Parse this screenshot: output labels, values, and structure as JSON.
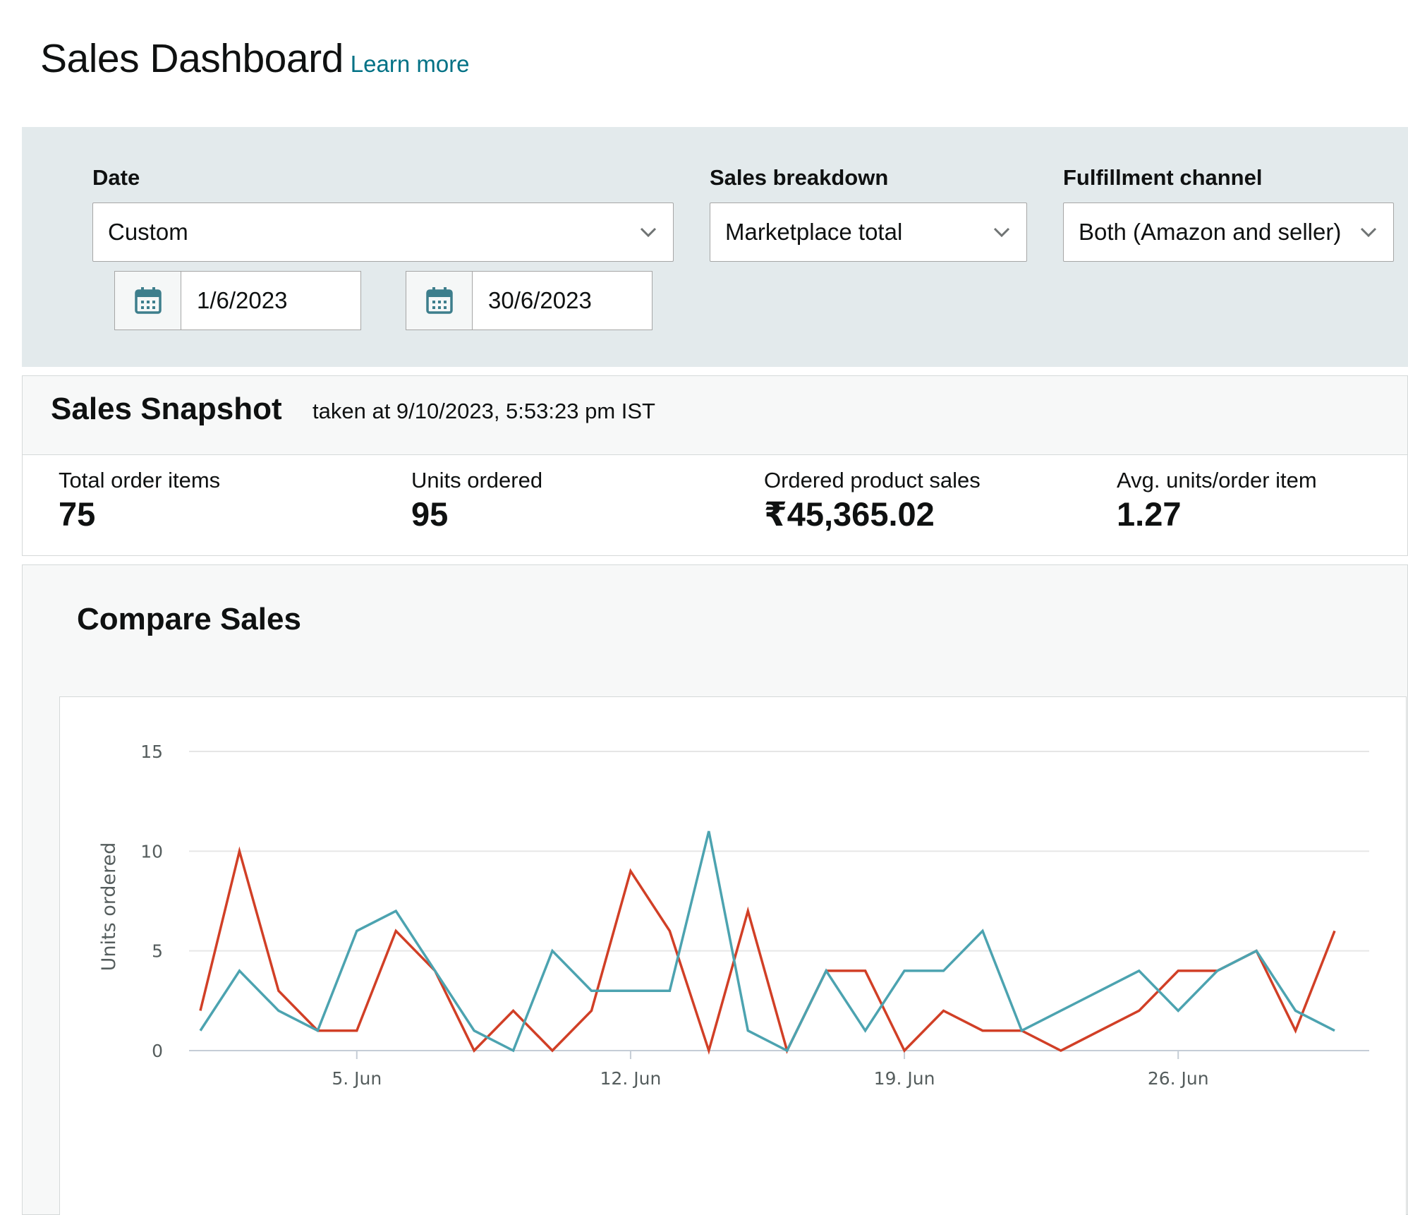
{
  "header": {
    "title": "Sales Dashboard",
    "learn_more": "Learn more"
  },
  "filters": {
    "date": {
      "label": "Date",
      "value": "Custom",
      "start": "1/6/2023",
      "end": "30/6/2023"
    },
    "sales_breakdown": {
      "label": "Sales breakdown",
      "value": "Marketplace total"
    },
    "fulfillment_channel": {
      "label": "Fulfillment channel",
      "value": "Both (Amazon and seller)"
    }
  },
  "snapshot": {
    "title": "Sales Snapshot",
    "taken_at": "taken at 9/10/2023, 5:53:23 pm IST",
    "metrics": [
      {
        "label": "Total order items",
        "value": "75"
      },
      {
        "label": "Units ordered",
        "value": "95"
      },
      {
        "label": "Ordered product sales",
        "value": "₹45,365.02"
      },
      {
        "label": "Avg. units/order item",
        "value": "1.27"
      }
    ]
  },
  "compare": {
    "title": "Compare Sales"
  },
  "colors": {
    "series_red": "#d13f26",
    "series_teal": "#4ca3b0",
    "link": "#007185"
  },
  "chart_data": {
    "type": "line",
    "ylabel": "Units ordered",
    "ylim": [
      0,
      15
    ],
    "yticks": [
      0,
      5,
      10,
      15
    ],
    "x": [
      1,
      2,
      3,
      4,
      5,
      6,
      7,
      8,
      9,
      10,
      11,
      12,
      13,
      14,
      15,
      16,
      17,
      18,
      19,
      20,
      21,
      22,
      23,
      24,
      25,
      26,
      27,
      28,
      29,
      30
    ],
    "xticks": [
      {
        "x": 5,
        "label": "5. Jun"
      },
      {
        "x": 12,
        "label": "12. Jun"
      },
      {
        "x": 19,
        "label": "19. Jun"
      },
      {
        "x": 26,
        "label": "26. Jun"
      }
    ],
    "grid": true,
    "series": [
      {
        "color": "#d13f26",
        "values": [
          2,
          10,
          3,
          1,
          1,
          6,
          4,
          0,
          2,
          0,
          2,
          9,
          6,
          0,
          7,
          0,
          4,
          4,
          0,
          2,
          1,
          1,
          0,
          1,
          2,
          4,
          4,
          5,
          1,
          6
        ]
      },
      {
        "color": "#4ca3b0",
        "values": [
          1,
          4,
          2,
          1,
          6,
          7,
          4,
          1,
          0,
          5,
          3,
          3,
          3,
          11,
          1,
          0,
          4,
          1,
          4,
          4,
          6,
          1,
          2,
          3,
          4,
          2,
          4,
          5,
          2,
          1
        ]
      }
    ]
  }
}
